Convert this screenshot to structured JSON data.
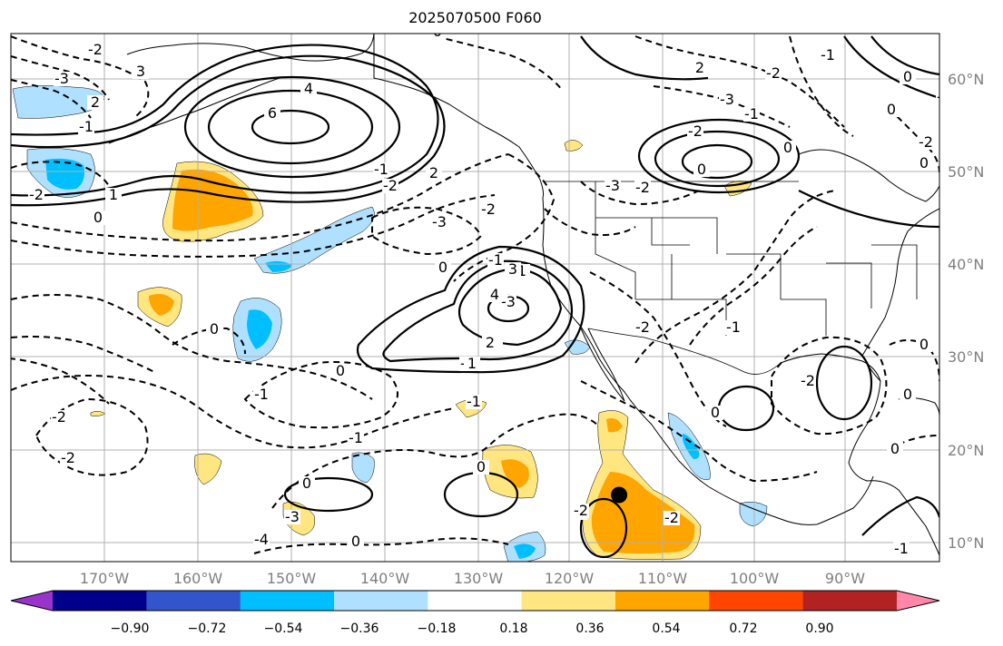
{
  "title": "2025070500 F060",
  "map": {
    "lon_range": [
      -180,
      -80
    ],
    "lat_range": [
      8,
      65
    ],
    "lat_ticks": [
      "60°N",
      "50°N",
      "40°N",
      "30°N",
      "20°N",
      "10°N"
    ],
    "lon_ticks": [
      "170°W",
      "160°W",
      "150°W",
      "140°W",
      "130°W",
      "120°W",
      "110°W",
      "100°W",
      "90°W"
    ],
    "contour_labels": [
      "0",
      "-2",
      "-3",
      "3",
      "2",
      "-1",
      "4",
      "6",
      "1",
      "-2",
      "0",
      "-1",
      "2",
      "-2",
      "-3",
      "0",
      "-2",
      "-3",
      "-1",
      "1",
      "0",
      "-1",
      "3",
      "4",
      "2",
      "1",
      "0",
      "-2",
      "-2",
      "-1",
      "-1",
      "0",
      "0",
      "0",
      "-1",
      "0",
      "-2",
      "-2",
      "-1",
      "0",
      "-2",
      "0",
      "-1",
      "0",
      "0",
      "-2",
      "-3",
      "2",
      "-2",
      "-3",
      "-1",
      "0",
      "0",
      "-2",
      "0",
      "-1",
      "0",
      "-2",
      "0",
      "-3",
      "0",
      "-4",
      "-3",
      "-2"
    ],
    "marker": {
      "lon": -114.5,
      "lat": 15.2
    }
  },
  "colorbar": {
    "labels": [
      "−0.90",
      "−0.72",
      "−0.54",
      "−0.36",
      "−0.18",
      "0.18",
      "0.36",
      "0.54",
      "0.72",
      "0.90"
    ],
    "colors": [
      "#9933cc",
      "#00008b",
      "#3355cc",
      "#00bfff",
      "#b0e0ff",
      "#ffffff",
      "#ffe680",
      "#ffa500",
      "#ff4500",
      "#b22222",
      "#ff88aa"
    ]
  },
  "colors": {
    "light_blue": "#b0e0ff",
    "deep_sky": "#00bfff",
    "light_yellow": "#ffe680",
    "orange": "#ffa500"
  }
}
